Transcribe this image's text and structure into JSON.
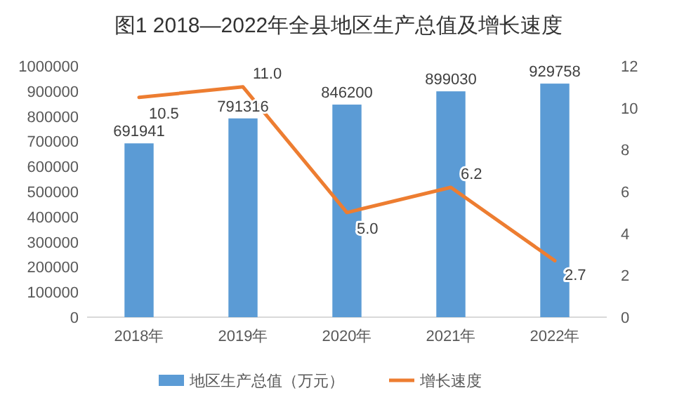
{
  "chart_data": {
    "type": "bar",
    "title": "图1  2018—2022年全县地区生产总值及增长速度",
    "categories": [
      "2018年",
      "2019年",
      "2020年",
      "2021年",
      "2022年"
    ],
    "series": [
      {
        "name": "地区生产总值（万元）",
        "color": "#5b9bd5",
        "values": [
          691941,
          791316,
          846200,
          899030,
          929758
        ],
        "value_labels": [
          "691941",
          "791316",
          "846200",
          "899030",
          "929758"
        ]
      },
      {
        "name": "增长速度",
        "type": "line",
        "axis": "y2",
        "color": "#ed7d31",
        "values": [
          10.5,
          11.0,
          5.0,
          6.2,
          2.7
        ],
        "value_labels": [
          "10.5",
          "11.0",
          "5.0",
          "6.2",
          "2.7"
        ]
      }
    ],
    "ylim": [
      0,
      1000000
    ],
    "yticks": [
      0,
      100000,
      200000,
      300000,
      400000,
      500000,
      600000,
      700000,
      800000,
      900000,
      1000000
    ],
    "y2lim": [
      0,
      12
    ],
    "y2ticks": [
      0,
      2,
      4,
      6,
      8,
      10,
      12
    ],
    "legend": "bottom"
  }
}
